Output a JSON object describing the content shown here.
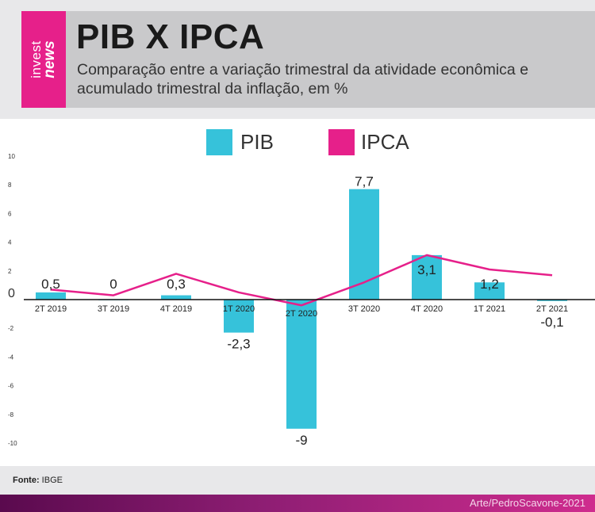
{
  "header": {
    "logo_invest": "invest",
    "logo_news": "news",
    "title": "PIB X IPCA",
    "subtitle": "Comparação entre a variação trimestral da atividade econômica e acumulado trimestral da inflação, em %"
  },
  "footer": {
    "source_label": "Fonte:",
    "source_value": "IBGE",
    "credit": "Arte/PedroScavone-2021"
  },
  "colors": {
    "pib": "#36c2da",
    "ipca": "#e6208a"
  },
  "chart_data": {
    "type": "bar",
    "categories": [
      "2T 2019",
      "3T 2019",
      "4T 2019",
      "1T 2020",
      "2T 2020",
      "3T 2020",
      "4T 2020",
      "1T 2021",
      "2T 2021"
    ],
    "series": [
      {
        "name": "PIB",
        "type": "bar",
        "values": [
          0.5,
          0,
          0.3,
          -2.3,
          -9,
          7.7,
          3.1,
          1.2,
          -0.1
        ],
        "labels": [
          "0,5",
          "0",
          "0,3",
          "-2,3",
          "-9",
          "7,7",
          "3,1",
          "1,2",
          "-0,1"
        ]
      },
      {
        "name": "IPCA",
        "type": "line",
        "values": [
          0.7,
          0.3,
          1.8,
          0.5,
          -0.4,
          1.2,
          3.1,
          2.1,
          1.7
        ]
      }
    ],
    "ylim": [
      -10,
      10
    ],
    "yticks": [
      10,
      8,
      6,
      4,
      2,
      0,
      -2,
      -4,
      -6,
      -8,
      -10
    ],
    "ytick_labels": [
      "10",
      "8",
      "6",
      "4",
      "2",
      "0",
      "-2",
      "-4",
      "-6",
      "-8",
      "-10"
    ],
    "legend": [
      "PIB",
      "IPCA"
    ],
    "legend_position": "top-center",
    "grid": false
  }
}
